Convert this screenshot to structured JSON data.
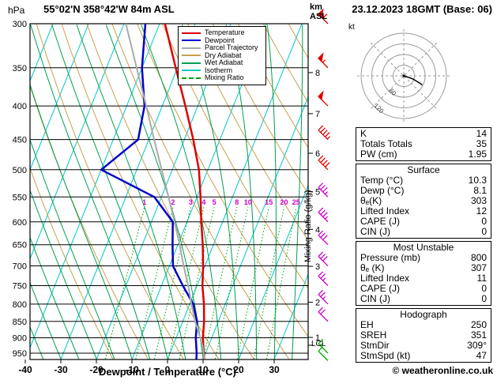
{
  "header": {
    "pressure_unit": "hPa",
    "station": "55°02'N 358°42'W 84m ASL",
    "datetime": "23.12.2023 18GMT (Base: 06)",
    "km_label": "km",
    "asl_label": "ASL",
    "copyright": "© weatheronline.co.uk"
  },
  "legend": {
    "items": [
      {
        "label": "Temperature",
        "color": "#dd0000",
        "dash": "solid"
      },
      {
        "label": "Dewpoint",
        "color": "#0000cc",
        "dash": "solid"
      },
      {
        "label": "Parcel Trajectory",
        "color": "#aaaaaa",
        "dash": "solid"
      },
      {
        "label": "Dry Adiabat",
        "color": "#c8a050",
        "dash": "solid"
      },
      {
        "label": "Wet Adiabat",
        "color": "#00a050",
        "dash": "solid"
      },
      {
        "label": "Isotherm",
        "color": "#00c8c8",
        "dash": "solid"
      },
      {
        "label": "Mixing Ratio",
        "color": "#00a000",
        "dash": "dashed"
      }
    ]
  },
  "axes": {
    "xlabel": "Dewpoint / Temperature (°C)",
    "x_ticks": [
      -40,
      -30,
      -20,
      -10,
      0,
      10,
      20,
      30
    ],
    "pressure_ticks": [
      300,
      350,
      400,
      450,
      500,
      550,
      600,
      650,
      700,
      750,
      800,
      850,
      900,
      950
    ],
    "km_ticks": [
      8,
      7,
      6,
      5,
      4,
      3,
      2,
      1
    ],
    "lcl_label": "LCL",
    "mixing_ratio_axis_label": "Mixing Ratio (g/kg)"
  },
  "chart_data": {
    "type": "line",
    "subtype": "skew-t_log-p_sounding",
    "x_axis": {
      "label": "Dewpoint / Temperature (°C)",
      "units": "°C",
      "range": [
        -40,
        40
      ],
      "ticks": [
        -40,
        -30,
        -20,
        -10,
        0,
        10,
        20,
        30
      ]
    },
    "y_axis": {
      "label": "hPa",
      "scale": "log",
      "range": [
        300,
        970
      ],
      "ticks": [
        300,
        350,
        400,
        450,
        500,
        550,
        600,
        650,
        700,
        750,
        800,
        850,
        900,
        950
      ]
    },
    "mixing_ratio_lines": [
      1,
      2,
      3,
      4,
      5,
      8,
      10,
      15,
      20,
      25
    ],
    "style": {
      "isotherm_color": "#00c8c8",
      "dry_adiabat_color": "#c8a050",
      "wet_adiabat_color": "#00a050",
      "mixing_ratio_color": "#00a000",
      "mixing_ratio_label_color": "#cc00cc",
      "pressure_line_color": "#000000"
    },
    "series": [
      {
        "name": "Temperature",
        "color": "#dd0000",
        "width": 2.5,
        "points": [
          [
            970,
            10.3
          ],
          [
            950,
            9.5
          ],
          [
            900,
            7.5
          ],
          [
            850,
            6.0
          ],
          [
            800,
            4.0
          ],
          [
            750,
            1.5
          ],
          [
            700,
            -0.5
          ],
          [
            650,
            -3.0
          ],
          [
            600,
            -6.0
          ],
          [
            550,
            -9.0
          ],
          [
            500,
            -12.5
          ],
          [
            450,
            -17.5
          ],
          [
            400,
            -23.5
          ],
          [
            350,
            -30.5
          ],
          [
            300,
            -38.5
          ]
        ]
      },
      {
        "name": "Dewpoint",
        "color": "#0000cc",
        "width": 2.5,
        "points": [
          [
            970,
            8.1
          ],
          [
            950,
            7.5
          ],
          [
            900,
            5.5
          ],
          [
            850,
            4.0
          ],
          [
            800,
            1.0
          ],
          [
            750,
            -4.0
          ],
          [
            700,
            -9.0
          ],
          [
            650,
            -11.5
          ],
          [
            600,
            -14.0
          ],
          [
            550,
            -22.0
          ],
          [
            500,
            -40.0
          ],
          [
            450,
            -33.0
          ],
          [
            400,
            -35.0
          ],
          [
            350,
            -40.0
          ],
          [
            300,
            -44.0
          ]
        ]
      },
      {
        "name": "Parcel Trajectory",
        "color": "#aaaaaa",
        "width": 2,
        "points": [
          [
            970,
            10.3
          ],
          [
            925,
            8.3
          ],
          [
            850,
            3.5
          ],
          [
            800,
            0.5
          ],
          [
            750,
            -2.5
          ],
          [
            700,
            -6.0
          ],
          [
            650,
            -9.5
          ],
          [
            600,
            -13.5
          ],
          [
            550,
            -18.0
          ],
          [
            500,
            -23.0
          ],
          [
            450,
            -28.5
          ],
          [
            400,
            -34.5
          ],
          [
            350,
            -41.5
          ],
          [
            300,
            -49.5
          ]
        ]
      }
    ],
    "wind_dir_deg": 315,
    "wind_barbs": [
      {
        "p": 300,
        "speed_kt": 60,
        "color": "#dd0000"
      },
      {
        "p": 350,
        "speed_kt": 55,
        "color": "#dd0000"
      },
      {
        "p": 400,
        "speed_kt": 50,
        "color": "#dd0000"
      },
      {
        "p": 450,
        "speed_kt": 45,
        "color": "#dd0000"
      },
      {
        "p": 500,
        "speed_kt": 40,
        "color": "#dd0000"
      },
      {
        "p": 550,
        "speed_kt": 35,
        "color": "#cc00cc"
      },
      {
        "p": 600,
        "speed_kt": 35,
        "color": "#cc00cc"
      },
      {
        "p": 650,
        "speed_kt": 30,
        "color": "#cc00cc"
      },
      {
        "p": 700,
        "speed_kt": 30,
        "color": "#cc00cc"
      },
      {
        "p": 750,
        "speed_kt": 25,
        "color": "#cc00cc"
      },
      {
        "p": 800,
        "speed_kt": 25,
        "color": "#cc00cc"
      },
      {
        "p": 850,
        "speed_kt": 20,
        "color": "#cc00cc"
      },
      {
        "p": 950,
        "speed_kt": 15,
        "color": "#00aa00"
      },
      {
        "p": 975,
        "speed_kt": 10,
        "color": "#00aa00"
      }
    ]
  },
  "hodograph": {
    "unit_label": "kt",
    "rings_kt": [
      30,
      60,
      90,
      120
    ],
    "ring_labels": [
      60,
      120
    ],
    "trace_uv_kt": [
      [
        6,
        -2
      ],
      [
        16,
        -5
      ],
      [
        26,
        -9
      ],
      [
        36,
        -15
      ],
      [
        46,
        -21
      ],
      [
        52,
        -26
      ]
    ]
  },
  "table": {
    "boxes": [
      {
        "title": "",
        "rows": [
          {
            "label": "K",
            "value": "14"
          },
          {
            "label": "Totals Totals",
            "value": "35"
          },
          {
            "label": "PW (cm)",
            "value": "1.95"
          }
        ]
      },
      {
        "title": "Surface",
        "rows": [
          {
            "label": "Temp (°C)",
            "value": "10.3"
          },
          {
            "label": "Dewp (°C)",
            "value": "8.1"
          },
          {
            "label": "θₑ(K)",
            "value": "303"
          },
          {
            "label": "Lifted Index",
            "value": "12"
          },
          {
            "label": "CAPE (J)",
            "value": "0"
          },
          {
            "label": "CIN (J)",
            "value": "0"
          }
        ]
      },
      {
        "title": "Most Unstable",
        "rows": [
          {
            "label": "Pressure (mb)",
            "value": "800"
          },
          {
            "label": "θₑ (K)",
            "value": "307"
          },
          {
            "label": "Lifted Index",
            "value": "11"
          },
          {
            "label": "CAPE (J)",
            "value": "0"
          },
          {
            "label": "CIN (J)",
            "value": "0"
          }
        ]
      },
      {
        "title": "Hodograph",
        "rows": [
          {
            "label": "EH",
            "value": "250"
          },
          {
            "label": "SREH",
            "value": "351"
          },
          {
            "label": "StmDir",
            "value": "309°"
          },
          {
            "label": "StmSpd (kt)",
            "value": "47"
          }
        ]
      }
    ]
  }
}
